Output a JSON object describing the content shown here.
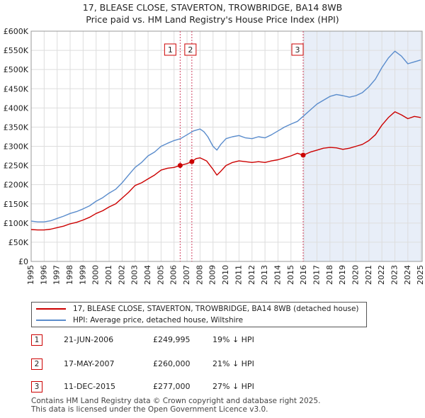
{
  "title_line1": "17, BLEASE CLOSE, STAVERTON, TROWBRIDGE, BA14 8WB",
  "title_line2": "Price paid vs. HM Land Registry's House Price Index (HPI)",
  "colors": {
    "property": "#cc0000",
    "hpi": "#5a8ccc",
    "shade": "#e8eef8",
    "grid": "#dddddd"
  },
  "legend": {
    "property": "17, BLEASE CLOSE, STAVERTON, TROWBRIDGE, BA14 8WB (detached house)",
    "hpi": "HPI: Average price, detached house, Wiltshire"
  },
  "sales": [
    {
      "num": "1",
      "date": "21-JUN-2006",
      "price": "£249,995",
      "diff": "19% ↓ HPI"
    },
    {
      "num": "2",
      "date": "17-MAY-2007",
      "price": "£260,000",
      "diff": "21% ↓ HPI"
    },
    {
      "num": "3",
      "date": "11-DEC-2015",
      "price": "£277,000",
      "diff": "27% ↓ HPI"
    }
  ],
  "footer": {
    "line1": "Contains HM Land Registry data © Crown copyright and database right 2025.",
    "line2": "This data is licensed under the Open Government Licence v3.0."
  },
  "chart_data": {
    "type": "line",
    "title": "17, BLEASE CLOSE, STAVERTON, TROWBRIDGE, BA14 8WB — Price paid vs. HM Land Registry's House Price Index (HPI)",
    "xlabel": "",
    "ylabel": "",
    "xlim": [
      1995,
      2025.1
    ],
    "ylim": [
      0,
      600000
    ],
    "y_ticks": [
      0,
      50000,
      100000,
      150000,
      200000,
      250000,
      300000,
      350000,
      400000,
      450000,
      500000,
      550000,
      600000
    ],
    "y_tick_labels": [
      "£0",
      "£50K",
      "£100K",
      "£150K",
      "£200K",
      "£250K",
      "£300K",
      "£350K",
      "£400K",
      "£450K",
      "£500K",
      "£550K",
      "£600K"
    ],
    "x_ticks": [
      1995,
      1996,
      1997,
      1998,
      1999,
      2000,
      2001,
      2002,
      2003,
      2004,
      2005,
      2006,
      2007,
      2008,
      2009,
      2010,
      2011,
      2012,
      2013,
      2014,
      2015,
      2016,
      2017,
      2018,
      2019,
      2020,
      2021,
      2022,
      2023,
      2024,
      2025
    ],
    "x_tick_labels": [
      "1995",
      "1996",
      "1997",
      "1998",
      "1999",
      "2000",
      "2001",
      "2002",
      "2003",
      "2004",
      "2005",
      "2006",
      "2007",
      "2008",
      "2009",
      "2010",
      "2011",
      "2012",
      "2013",
      "2014",
      "2015",
      "2016",
      "2017",
      "2018",
      "2019",
      "2020",
      "2021",
      "2022",
      "2023",
      "2024",
      "2025"
    ],
    "grid": true,
    "series": [
      {
        "name": "17, BLEASE CLOSE, STAVERTON, TROWBRIDGE, BA14 8WB (detached house)",
        "x": [
          1995,
          1995.5,
          1996,
          1996.5,
          1997,
          1997.5,
          1998,
          1998.5,
          1999,
          1999.5,
          2000,
          2000.5,
          2001,
          2001.5,
          2002,
          2002.5,
          2003,
          2003.5,
          2004,
          2004.5,
          2005,
          2005.5,
          2006,
          2006.47,
          2007,
          2007.37,
          2007.7,
          2008,
          2008.5,
          2009,
          2009.3,
          2009.6,
          2010,
          2010.5,
          2011,
          2011.5,
          2012,
          2012.5,
          2013,
          2013.5,
          2014,
          2014.5,
          2015,
          2015.5,
          2015.94,
          2016.5,
          2017,
          2017.5,
          2018,
          2018.5,
          2019,
          2019.5,
          2020,
          2020.5,
          2021,
          2021.5,
          2022,
          2022.5,
          2023,
          2023.5,
          2024,
          2024.5,
          2025
        ],
        "y": [
          83000,
          82000,
          82000,
          84000,
          88000,
          92000,
          98000,
          102000,
          108000,
          115000,
          125000,
          132000,
          142000,
          150000,
          165000,
          180000,
          198000,
          205000,
          215000,
          225000,
          238000,
          243000,
          245000,
          249995,
          255000,
          260000,
          268000,
          270000,
          262000,
          240000,
          225000,
          235000,
          250000,
          258000,
          262000,
          260000,
          258000,
          260000,
          258000,
          262000,
          265000,
          270000,
          275000,
          282000,
          277000,
          285000,
          290000,
          295000,
          297000,
          296000,
          292000,
          295000,
          300000,
          305000,
          315000,
          330000,
          355000,
          375000,
          390000,
          382000,
          372000,
          378000,
          375000
        ]
      },
      {
        "name": "HPI: Average price, detached house, Wiltshire",
        "x": [
          1995,
          1995.5,
          1996,
          1996.5,
          1997,
          1997.5,
          1998,
          1998.5,
          1999,
          1999.5,
          2000,
          2000.5,
          2001,
          2001.5,
          2002,
          2002.5,
          2003,
          2003.5,
          2004,
          2004.5,
          2005,
          2005.5,
          2006,
          2006.5,
          2007,
          2007.5,
          2008,
          2008.3,
          2008.6,
          2009,
          2009.3,
          2009.6,
          2010,
          2010.5,
          2011,
          2011.5,
          2012,
          2012.5,
          2013,
          2013.5,
          2014,
          2014.5,
          2015,
          2015.5,
          2016,
          2016.5,
          2017,
          2017.5,
          2018,
          2018.5,
          2019,
          2019.5,
          2020,
          2020.5,
          2021,
          2021.5,
          2022,
          2022.5,
          2023,
          2023.5,
          2024,
          2024.5,
          2025
        ],
        "y": [
          105000,
          103000,
          103000,
          106000,
          112000,
          118000,
          125000,
          130000,
          137000,
          145000,
          157000,
          166000,
          178000,
          188000,
          205000,
          225000,
          245000,
          258000,
          275000,
          285000,
          300000,
          308000,
          315000,
          320000,
          330000,
          340000,
          345000,
          338000,
          325000,
          300000,
          290000,
          305000,
          320000,
          325000,
          328000,
          322000,
          320000,
          325000,
          322000,
          330000,
          340000,
          350000,
          358000,
          365000,
          380000,
          395000,
          410000,
          420000,
          430000,
          435000,
          432000,
          428000,
          432000,
          440000,
          455000,
          475000,
          505000,
          530000,
          548000,
          535000,
          515000,
          520000,
          525000
        ]
      }
    ],
    "sales": [
      {
        "label": "1",
        "x": 2006.47,
        "y": 249995
      },
      {
        "label": "2",
        "x": 2007.37,
        "y": 260000
      },
      {
        "label": "3",
        "x": 2015.94,
        "y": 277000
      }
    ]
  }
}
